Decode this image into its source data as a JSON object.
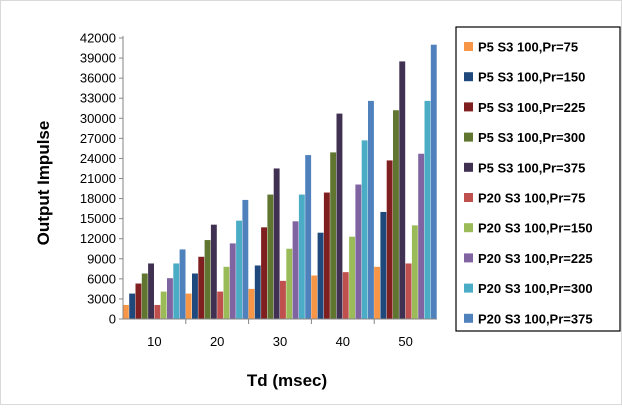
{
  "chart_data": {
    "type": "bar",
    "title": "",
    "xlabel": "Td (msec)",
    "ylabel": "Output Impulse",
    "categories": [
      "10",
      "20",
      "30",
      "40",
      "50"
    ],
    "ylim": [
      0,
      42000
    ],
    "yticks": [
      0,
      3000,
      6000,
      9000,
      12000,
      15000,
      18000,
      21000,
      24000,
      27000,
      30000,
      33000,
      36000,
      39000,
      42000
    ],
    "grid": false,
    "legend_position": "right",
    "series": [
      {
        "name": "P5 S3 100,Pr=75",
        "color": "#f79646",
        "values": [
          2100,
          3800,
          4500,
          6500,
          7800
        ]
      },
      {
        "name": "P5 S3 100,Pr=150",
        "color": "#1f497d",
        "values": [
          3800,
          6800,
          8000,
          12900,
          16000
        ]
      },
      {
        "name": "P5 S3 100,Pr=225",
        "color": "#7f1f1f",
        "values": [
          5300,
          9300,
          13700,
          18900,
          23700
        ]
      },
      {
        "name": "P5 S3 100,Pr=300",
        "color": "#5f7530",
        "values": [
          6800,
          11800,
          18600,
          24900,
          31200
        ]
      },
      {
        "name": "P5 S3 100,Pr=375",
        "color": "#403152",
        "values": [
          8300,
          14100,
          22500,
          30700,
          38500
        ]
      },
      {
        "name": "P20 S3 100,Pr=75",
        "color": "#c0504d",
        "values": [
          2100,
          4100,
          5700,
          7000,
          8300
        ]
      },
      {
        "name": "P20 S3 100,Pr=150",
        "color": "#9bbb59",
        "values": [
          4100,
          7800,
          10500,
          12300,
          14000
        ]
      },
      {
        "name": "P20 S3 100,Pr=225",
        "color": "#8064a2",
        "values": [
          6100,
          11300,
          14600,
          20100,
          24700
        ]
      },
      {
        "name": "P20 S3 100,Pr=300",
        "color": "#4bacc6",
        "values": [
          8300,
          14700,
          18600,
          26700,
          32600
        ]
      },
      {
        "name": "P20 S3 100,Pr=375",
        "color": "#4f81bd",
        "values": [
          10400,
          17800,
          24500,
          32600,
          41000
        ]
      }
    ]
  }
}
